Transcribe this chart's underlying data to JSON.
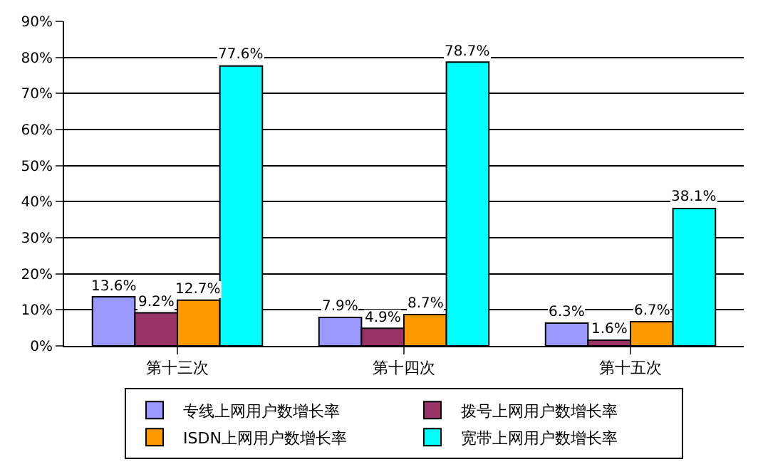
{
  "chart_data": {
    "type": "bar",
    "categories": [
      "第十三次",
      "第十四次",
      "第十五次"
    ],
    "series": [
      {
        "name": "专线上网用户数增长率",
        "color": "#9999ff",
        "values": [
          13.6,
          7.9,
          6.3
        ],
        "value_labels": [
          "13.6%",
          "7.9%",
          "6.3%"
        ]
      },
      {
        "name": "拨号上网用户数增长率",
        "color": "#993366",
        "values": [
          9.2,
          4.9,
          1.6
        ],
        "value_labels": [
          "9.2%",
          "4.9%",
          "1.6%"
        ]
      },
      {
        "name": "ISDN上网用户数增长率",
        "color": "#ff9900",
        "values": [
          12.7,
          8.7,
          6.7
        ],
        "value_labels": [
          "12.7%",
          "8.7%",
          "6.7%"
        ]
      },
      {
        "name": "宽带上网用户数增长率",
        "color": "#00ffff",
        "values": [
          77.6,
          78.7,
          38.1
        ],
        "value_labels": [
          "77.6%",
          "78.7%",
          "38.1%"
        ]
      }
    ],
    "ylim": [
      0,
      90
    ],
    "yticks": [
      {
        "value": 0,
        "label": "0%"
      },
      {
        "value": 10,
        "label": "10%"
      },
      {
        "value": 20,
        "label": "20%"
      },
      {
        "value": 30,
        "label": "30%"
      },
      {
        "value": 40,
        "label": "40%"
      },
      {
        "value": 50,
        "label": "50%"
      },
      {
        "value": 60,
        "label": "60%"
      },
      {
        "value": 70,
        "label": "70%"
      },
      {
        "value": 80,
        "label": "80%"
      },
      {
        "value": 90,
        "label": "90%"
      }
    ],
    "grid": "y",
    "legend": "bottom"
  }
}
